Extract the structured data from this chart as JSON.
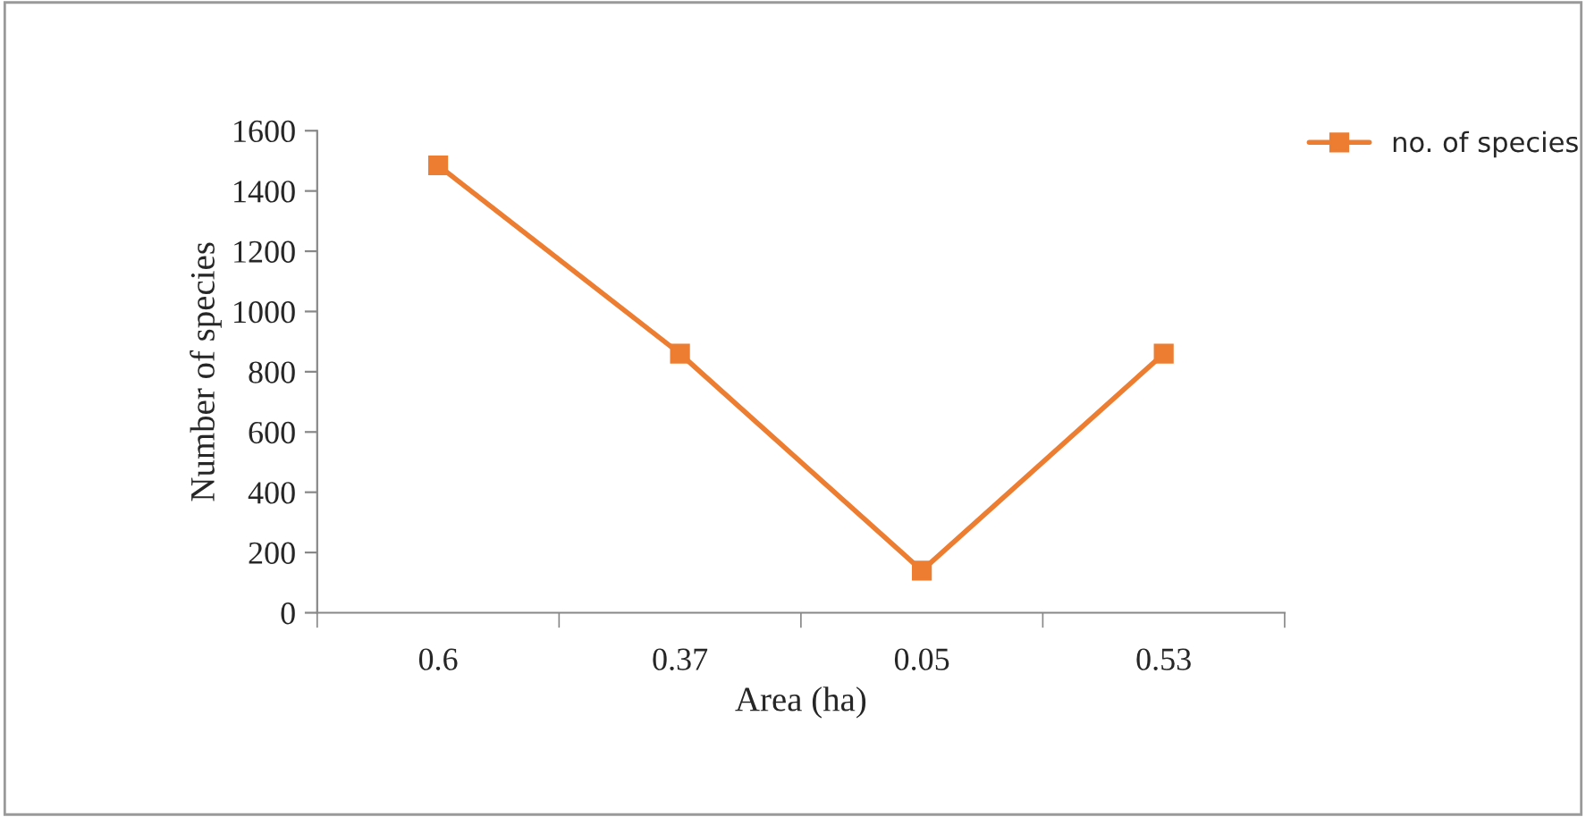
{
  "chart_data": {
    "type": "line",
    "xlabel": "Area (ha)",
    "ylabel": "Number of species",
    "categories": [
      "0.6",
      "0.37",
      "0.05",
      "0.53"
    ],
    "series": [
      {
        "name": "no. of species",
        "color": "#ed7d31",
        "values": [
          1485,
          860,
          140,
          860
        ]
      }
    ],
    "ylim": [
      0,
      1600
    ],
    "yticks": [
      0,
      200,
      400,
      600,
      800,
      1000,
      1200,
      1400,
      1600
    ],
    "grid": false,
    "legend": "top right",
    "marker": "square",
    "line_style": "solid"
  }
}
